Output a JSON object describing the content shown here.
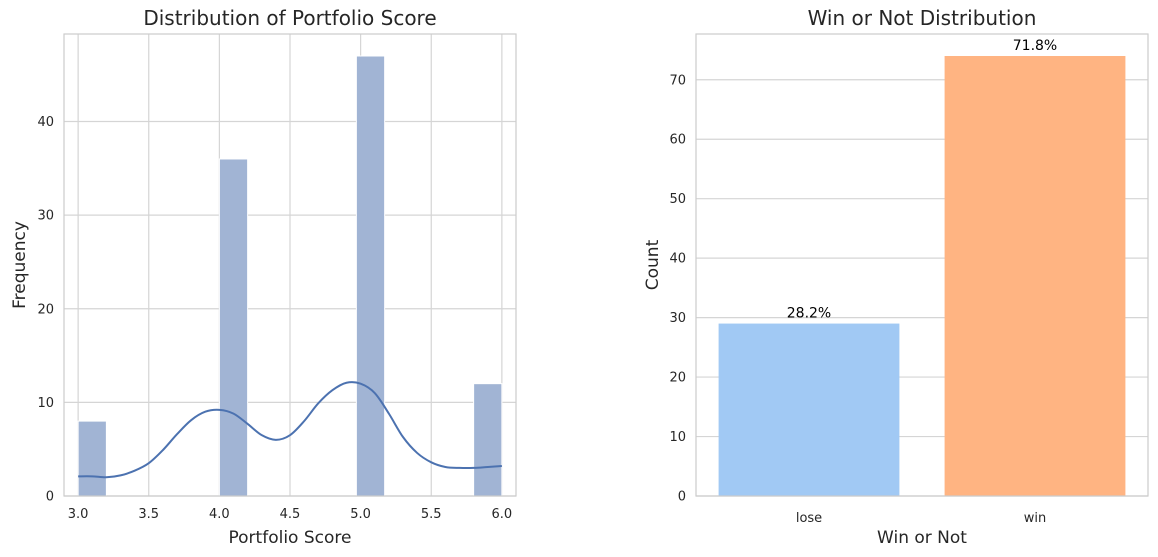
{
  "chart_data": [
    {
      "type": "bar",
      "subtype": "histogram_with_kde",
      "title": "Distribution of Portfolio Score",
      "xlabel": "Portfolio Score",
      "ylabel": "Frequency",
      "xlim": [
        2.9,
        6.1
      ],
      "ylim": [
        0,
        49.35
      ],
      "xticks": [
        3.0,
        3.5,
        4.0,
        4.5,
        5.0,
        5.5,
        6.0
      ],
      "yticks": [
        0,
        10,
        20,
        30,
        40
      ],
      "bin_width": 0.2,
      "bins": [
        {
          "x0": 3.0,
          "x1": 3.2,
          "count": 8
        },
        {
          "x0": 4.0,
          "x1": 4.2,
          "count": 36
        },
        {
          "x0": 4.97,
          "x1": 5.17,
          "count": 47
        },
        {
          "x0": 5.8,
          "x1": 6.0,
          "count": 12
        }
      ],
      "kde": {
        "x": [
          3.0,
          3.1,
          3.2,
          3.3,
          3.4,
          3.5,
          3.6,
          3.7,
          3.8,
          3.9,
          4.0,
          4.1,
          4.2,
          4.3,
          4.4,
          4.5,
          4.6,
          4.7,
          4.8,
          4.9,
          5.0,
          5.1,
          5.2,
          5.3,
          5.4,
          5.5,
          5.6,
          5.7,
          5.8,
          5.9,
          6.0
        ],
        "y": [
          2.1,
          2.1,
          2.0,
          2.2,
          2.7,
          3.5,
          4.9,
          6.6,
          8.1,
          9.0,
          9.2,
          8.8,
          7.7,
          6.5,
          6.0,
          6.5,
          8.0,
          9.9,
          11.3,
          12.1,
          12.0,
          11.0,
          8.8,
          6.3,
          4.6,
          3.6,
          3.1,
          3.0,
          3.0,
          3.1,
          3.2
        ]
      },
      "colors": {
        "bar": "#a1b4d4",
        "bar_edge": "#ffffff",
        "kde": "#4c72b0"
      },
      "grid": true
    },
    {
      "type": "bar",
      "title": "Win or Not Distribution",
      "xlabel": "Win or Not",
      "ylabel": "Count",
      "categories": [
        "lose",
        "win"
      ],
      "values": [
        29,
        74
      ],
      "data_labels": [
        "28.2%",
        "71.8%"
      ],
      "ylim": [
        0,
        77.7
      ],
      "yticks": [
        0,
        10,
        20,
        30,
        40,
        50,
        60,
        70
      ],
      "colors": [
        "#a1c9f4",
        "#ffb482"
      ],
      "grid": true
    }
  ]
}
